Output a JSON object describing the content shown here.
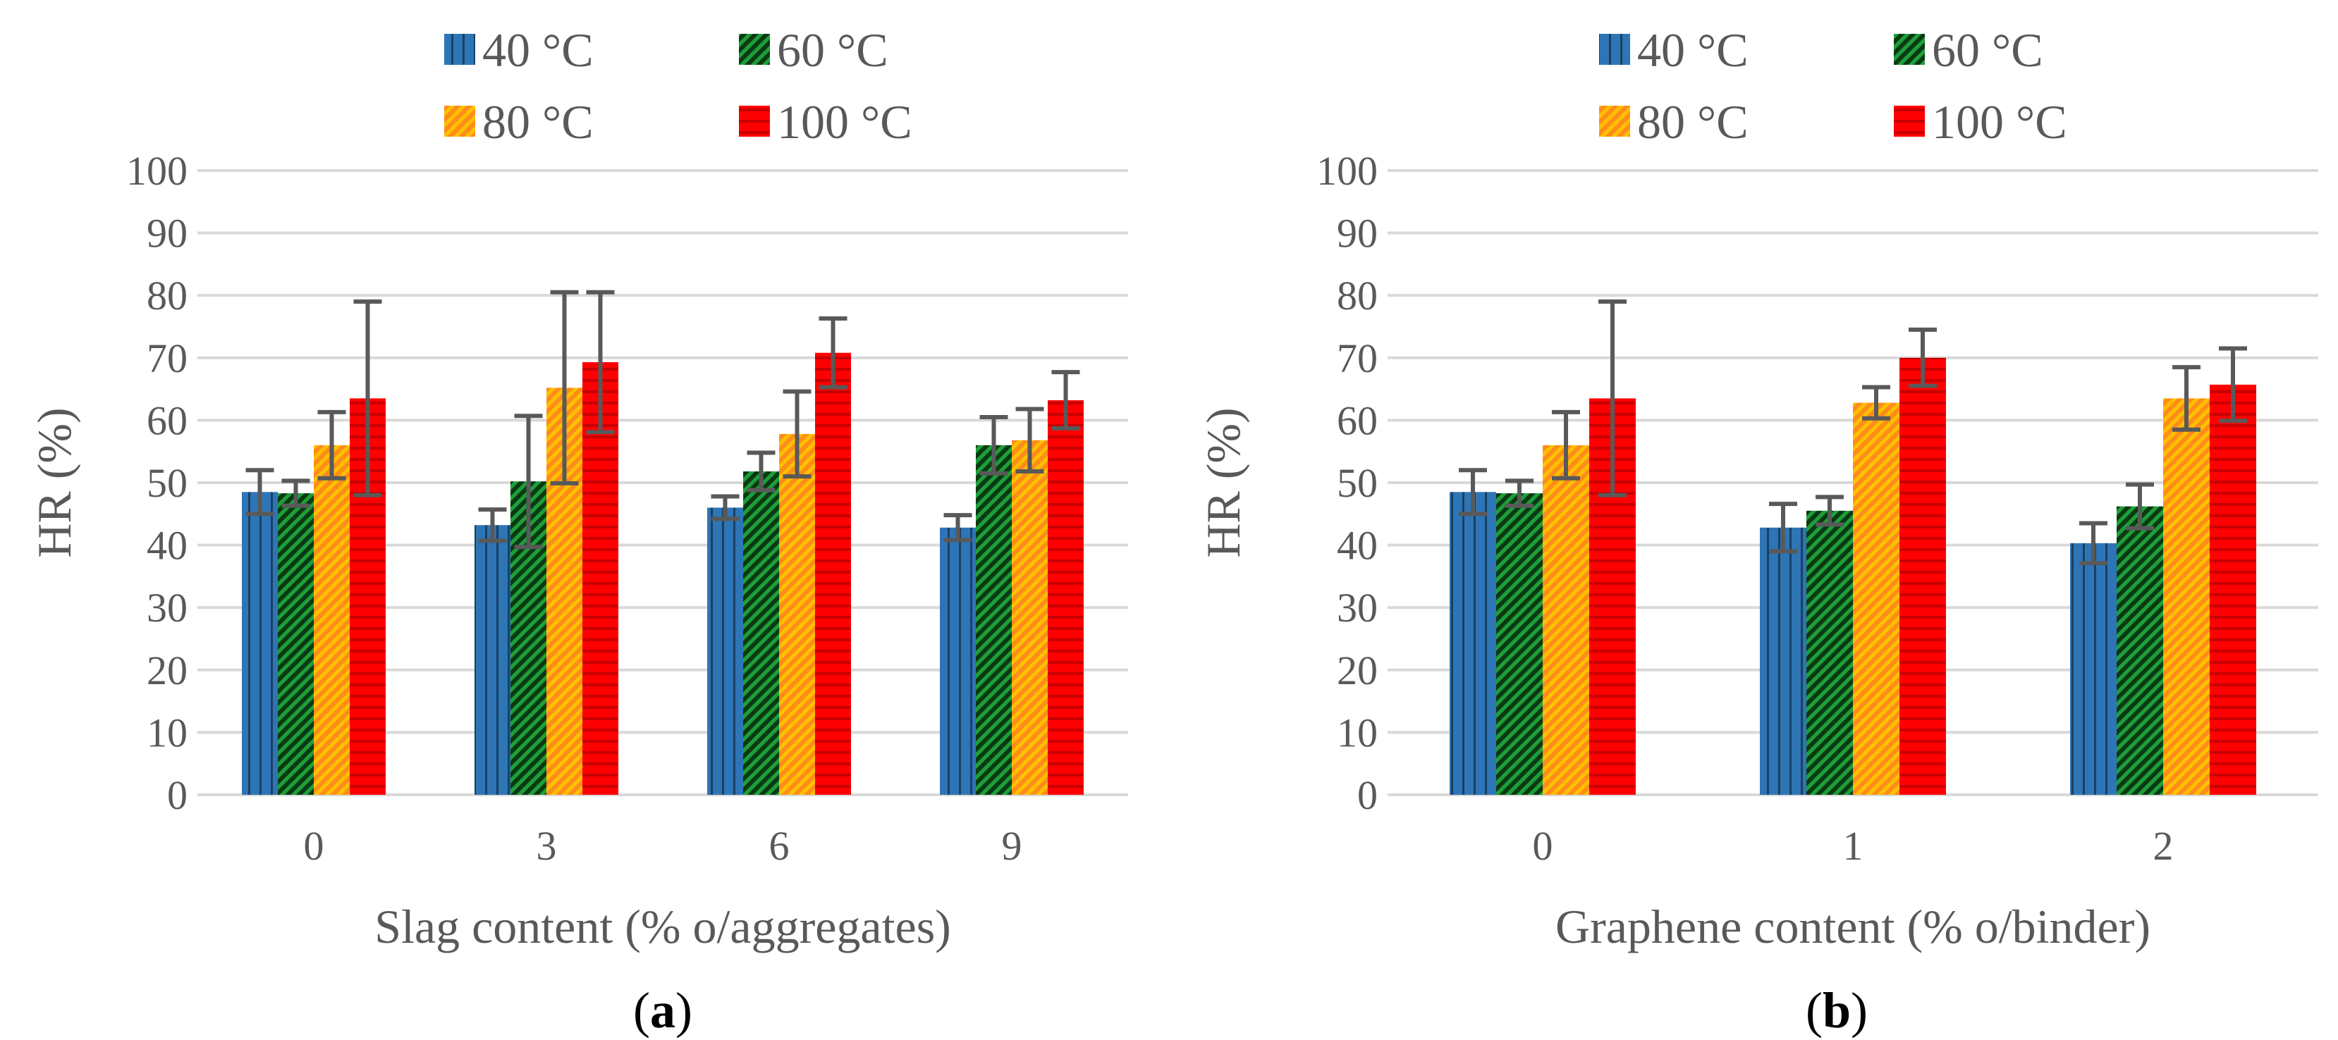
{
  "charts": {
    "a": {
      "panel_label": "a",
      "chart_data": {
        "type": "bar",
        "title": "",
        "xlabel": "Slag content (% o/aggregates)",
        "ylabel": "HR (%)",
        "ylim": [
          0,
          100
        ],
        "yticks": [
          "0",
          "10",
          "20",
          "30",
          "40",
          "50",
          "60",
          "70",
          "80",
          "90",
          "100"
        ],
        "categories": [
          "0",
          "3",
          "6",
          "9"
        ],
        "legend_position": "top",
        "grid": true,
        "series": [
          {
            "name": "40 °C",
            "color": "#2E75B6",
            "pattern": "vertical",
            "values": [
              48.5,
              43.2,
              46.0,
              42.8
            ],
            "error": [
              3.5,
              2.5,
              1.8,
              2.0
            ]
          },
          {
            "name": "60 °C",
            "color": "#1E9E3A",
            "pattern": "diagonal",
            "values": [
              48.3,
              50.2,
              51.8,
              56.0
            ],
            "error": [
              2.0,
              10.5,
              3.0,
              4.5
            ]
          },
          {
            "name": "80 °C",
            "color": "#FFC000",
            "pattern": "diagonal",
            "values": [
              56.0,
              65.2,
              57.8,
              56.8
            ],
            "error": [
              5.3,
              15.3,
              6.8,
              5.0
            ]
          },
          {
            "name": "100 °C",
            "color": "#FF0000",
            "pattern": "horizontal",
            "values": [
              63.5,
              69.3,
              70.8,
              63.2
            ],
            "error": [
              15.5,
              11.2,
              5.5,
              4.5
            ]
          }
        ]
      }
    },
    "b": {
      "panel_label": "b",
      "chart_data": {
        "type": "bar",
        "title": "",
        "xlabel": "Graphene content (% o/binder)",
        "ylabel": "HR (%)",
        "ylim": [
          0,
          100
        ],
        "yticks": [
          "0",
          "10",
          "20",
          "30",
          "40",
          "50",
          "60",
          "70",
          "80",
          "90",
          "100"
        ],
        "categories": [
          "0",
          "1",
          "2"
        ],
        "legend_position": "top",
        "grid": true,
        "series": [
          {
            "name": "40 °C",
            "color": "#2E75B6",
            "pattern": "vertical",
            "values": [
              48.5,
              42.8,
              40.3
            ],
            "error": [
              3.5,
              3.8,
              3.2
            ]
          },
          {
            "name": "60 °C",
            "color": "#1E9E3A",
            "pattern": "diagonal",
            "values": [
              48.3,
              45.5,
              46.2
            ],
            "error": [
              2.0,
              2.2,
              3.5
            ]
          },
          {
            "name": "80 °C",
            "color": "#FFC000",
            "pattern": "diagonal",
            "values": [
              56.0,
              62.8,
              63.5
            ],
            "error": [
              5.3,
              2.5,
              5.0
            ]
          },
          {
            "name": "100 °C",
            "color": "#FF0000",
            "pattern": "horizontal",
            "values": [
              63.5,
              70.0,
              65.7
            ],
            "error": [
              15.5,
              4.5,
              5.8
            ]
          }
        ]
      }
    }
  }
}
